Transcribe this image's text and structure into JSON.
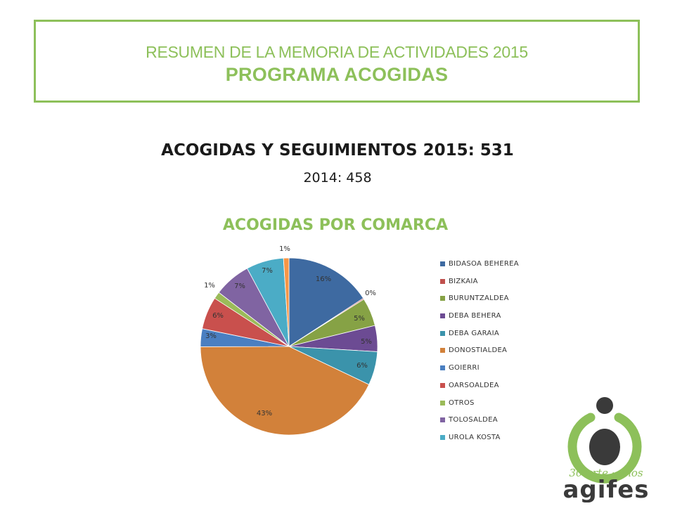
{
  "header": {
    "line1": "RESUMEN DE LA MEMORIA DE ACTIVIDADES 2015",
    "line2": "PROGRAMA ACOGIDAS"
  },
  "main_title": "ACOGIDAS Y SEGUIMIENTOS 2015: 531",
  "sub_title": "2014: 458",
  "logo": {
    "tagline": "30 urte · años",
    "name": "agifes"
  },
  "colors": {
    "accent_green": "#8dc05a",
    "text_dark": "#1a1a1a"
  },
  "chart_data": {
    "type": "pie",
    "title": "ACOGIDAS POR COMARCA",
    "legend_position": "right",
    "slices": [
      {
        "name": "BIDASOA BEHEREA",
        "label": "16%",
        "value": 16.0,
        "color": "#3e6aa1"
      },
      {
        "name": "BIZKAIA",
        "label": "0%",
        "value": 0.2,
        "color": "#c0504d"
      },
      {
        "name": "BURUNTZALDEA",
        "label": "5%",
        "value": 5.2,
        "color": "#86a245"
      },
      {
        "name": "DEBA BEHERA",
        "label": "5%",
        "value": 4.8,
        "color": "#6c4b93"
      },
      {
        "name": "DEBA GARAIA",
        "label": "6%",
        "value": 6.2,
        "color": "#3b93ab"
      },
      {
        "name": "DONOSTIALDEA",
        "label": "43%",
        "value": 43.3,
        "color": "#d2813a"
      },
      {
        "name": "GOIERRI",
        "label": "3%",
        "value": 3.3,
        "color": "#4a7fc1"
      },
      {
        "name": "OARSOALDEA",
        "label": "6%",
        "value": 6.0,
        "color": "#c9504d"
      },
      {
        "name": "OTROS",
        "label": "1%",
        "value": 1.3,
        "color": "#9bbb59"
      },
      {
        "name": "TOLOSALDEA",
        "label": "7%",
        "value": 6.8,
        "color": "#8064a2"
      },
      {
        "name": "UROLA KOSTA",
        "label": "7%",
        "value": 6.9,
        "color": "#4bacc6"
      },
      {
        "name": "",
        "label": "1%",
        "value": 1.0,
        "color": "#f79646"
      }
    ],
    "legend_entries": [
      "BIDASOA BEHEREA",
      "BIZKAIA",
      "BURUNTZALDEA",
      "DEBA BEHERA",
      "DEBA GARAIA",
      "DONOSTIALDEA",
      "GOIERRI",
      "OARSOALDEA",
      "OTROS",
      "TOLOSALDEA",
      "UROLA KOSTA"
    ]
  }
}
